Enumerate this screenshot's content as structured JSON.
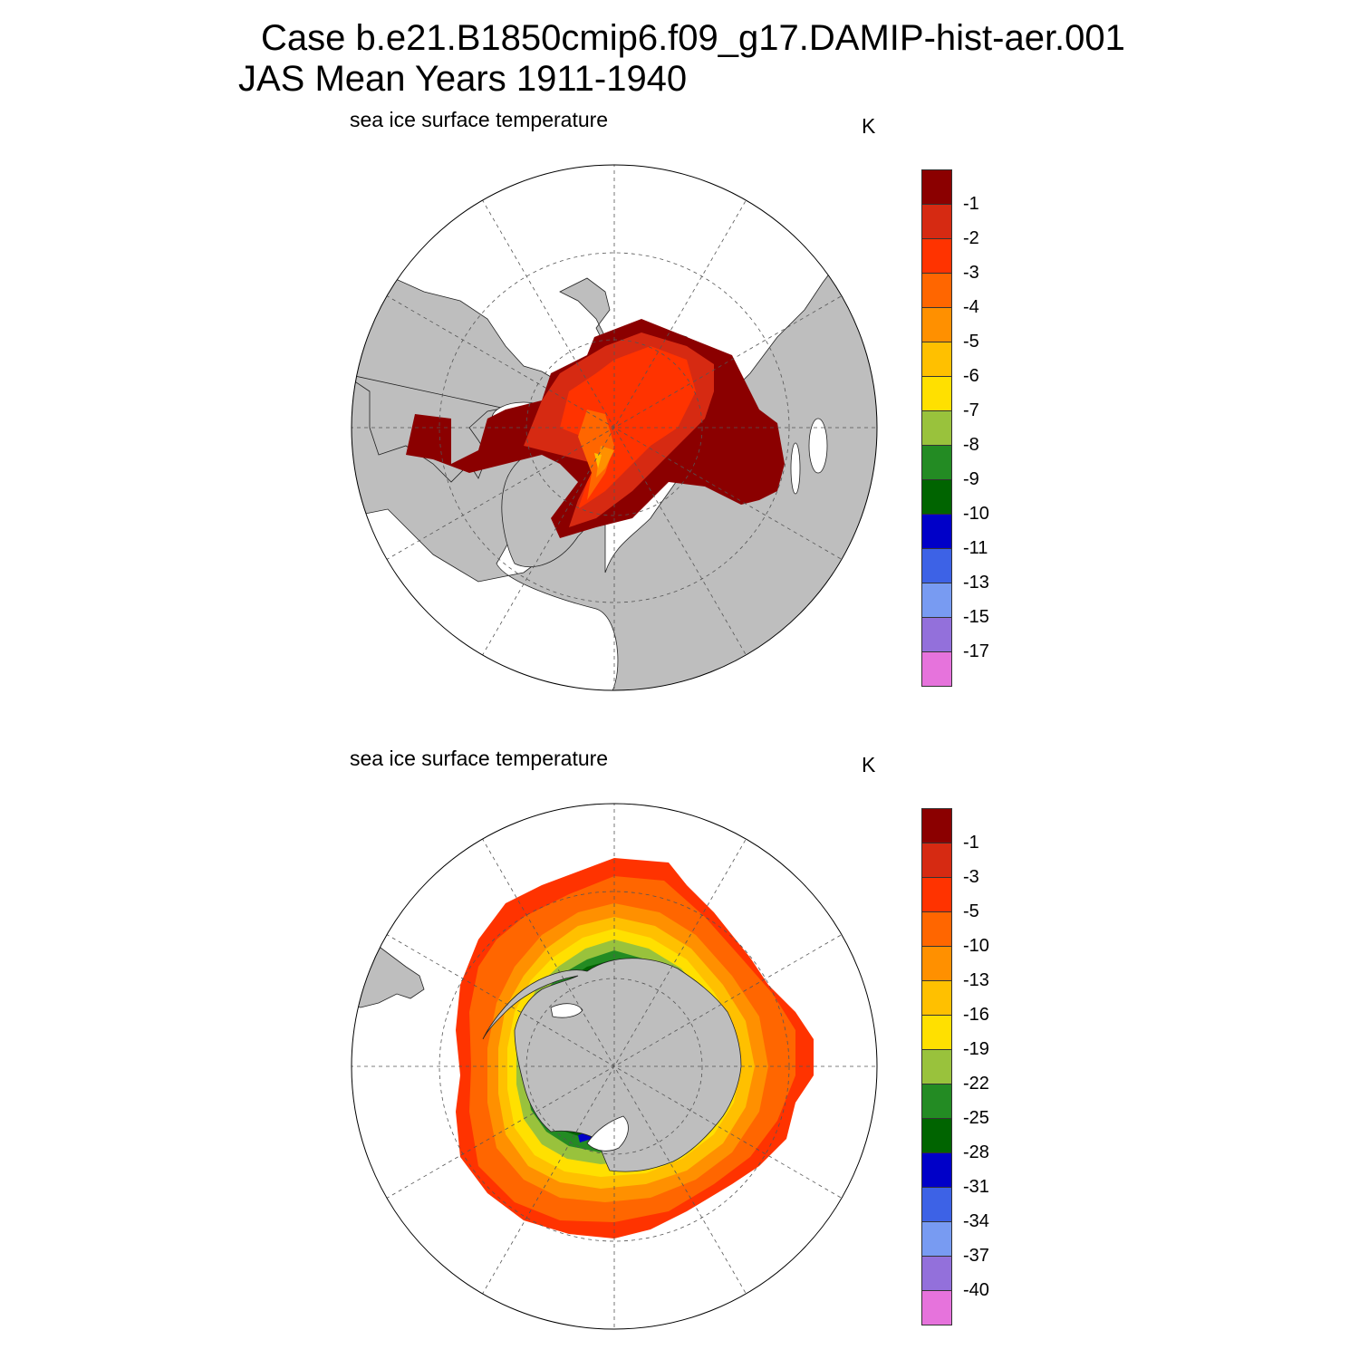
{
  "header": {
    "line1": "Case b.e21.B1850cmip6.f09_g17.DAMIP-hist-aer.001",
    "line2": "JAS Mean   Years 1911-1940"
  },
  "panels": [
    {
      "title": "sea ice surface temperature",
      "unit": "K",
      "hemisphere": "north",
      "colorbar": {
        "labels": [
          "-1",
          "-2",
          "-3",
          "-4",
          "-5",
          "-6",
          "-7",
          "-8",
          "-9",
          "-10",
          "-11",
          "-13",
          "-15",
          "-17"
        ],
        "colors": [
          "#8B0000",
          "#D62A12",
          "#FF3300",
          "#FF6600",
          "#FF9000",
          "#FFC000",
          "#FFE000",
          "#99C23C",
          "#238B23",
          "#006400",
          "#0000C8",
          "#3D62E6",
          "#789BF2",
          "#9370DB",
          "#E673DC"
        ]
      }
    },
    {
      "title": "sea ice surface temperature",
      "unit": "K",
      "hemisphere": "south",
      "colorbar": {
        "labels": [
          "-1",
          "-3",
          "-5",
          "-10",
          "-13",
          "-16",
          "-19",
          "-22",
          "-25",
          "-28",
          "-31",
          "-34",
          "-37",
          "-40"
        ],
        "colors": [
          "#8B0000",
          "#D62A12",
          "#FF3300",
          "#FF6600",
          "#FF9000",
          "#FFC000",
          "#FFE000",
          "#99C23C",
          "#238B23",
          "#006400",
          "#0000C8",
          "#3D62E6",
          "#789BF2",
          "#9370DB",
          "#E673DC"
        ]
      }
    }
  ],
  "colors": {
    "land": "#BEBEBE",
    "ocean": "#FFFFFF",
    "grid": "#555555"
  }
}
